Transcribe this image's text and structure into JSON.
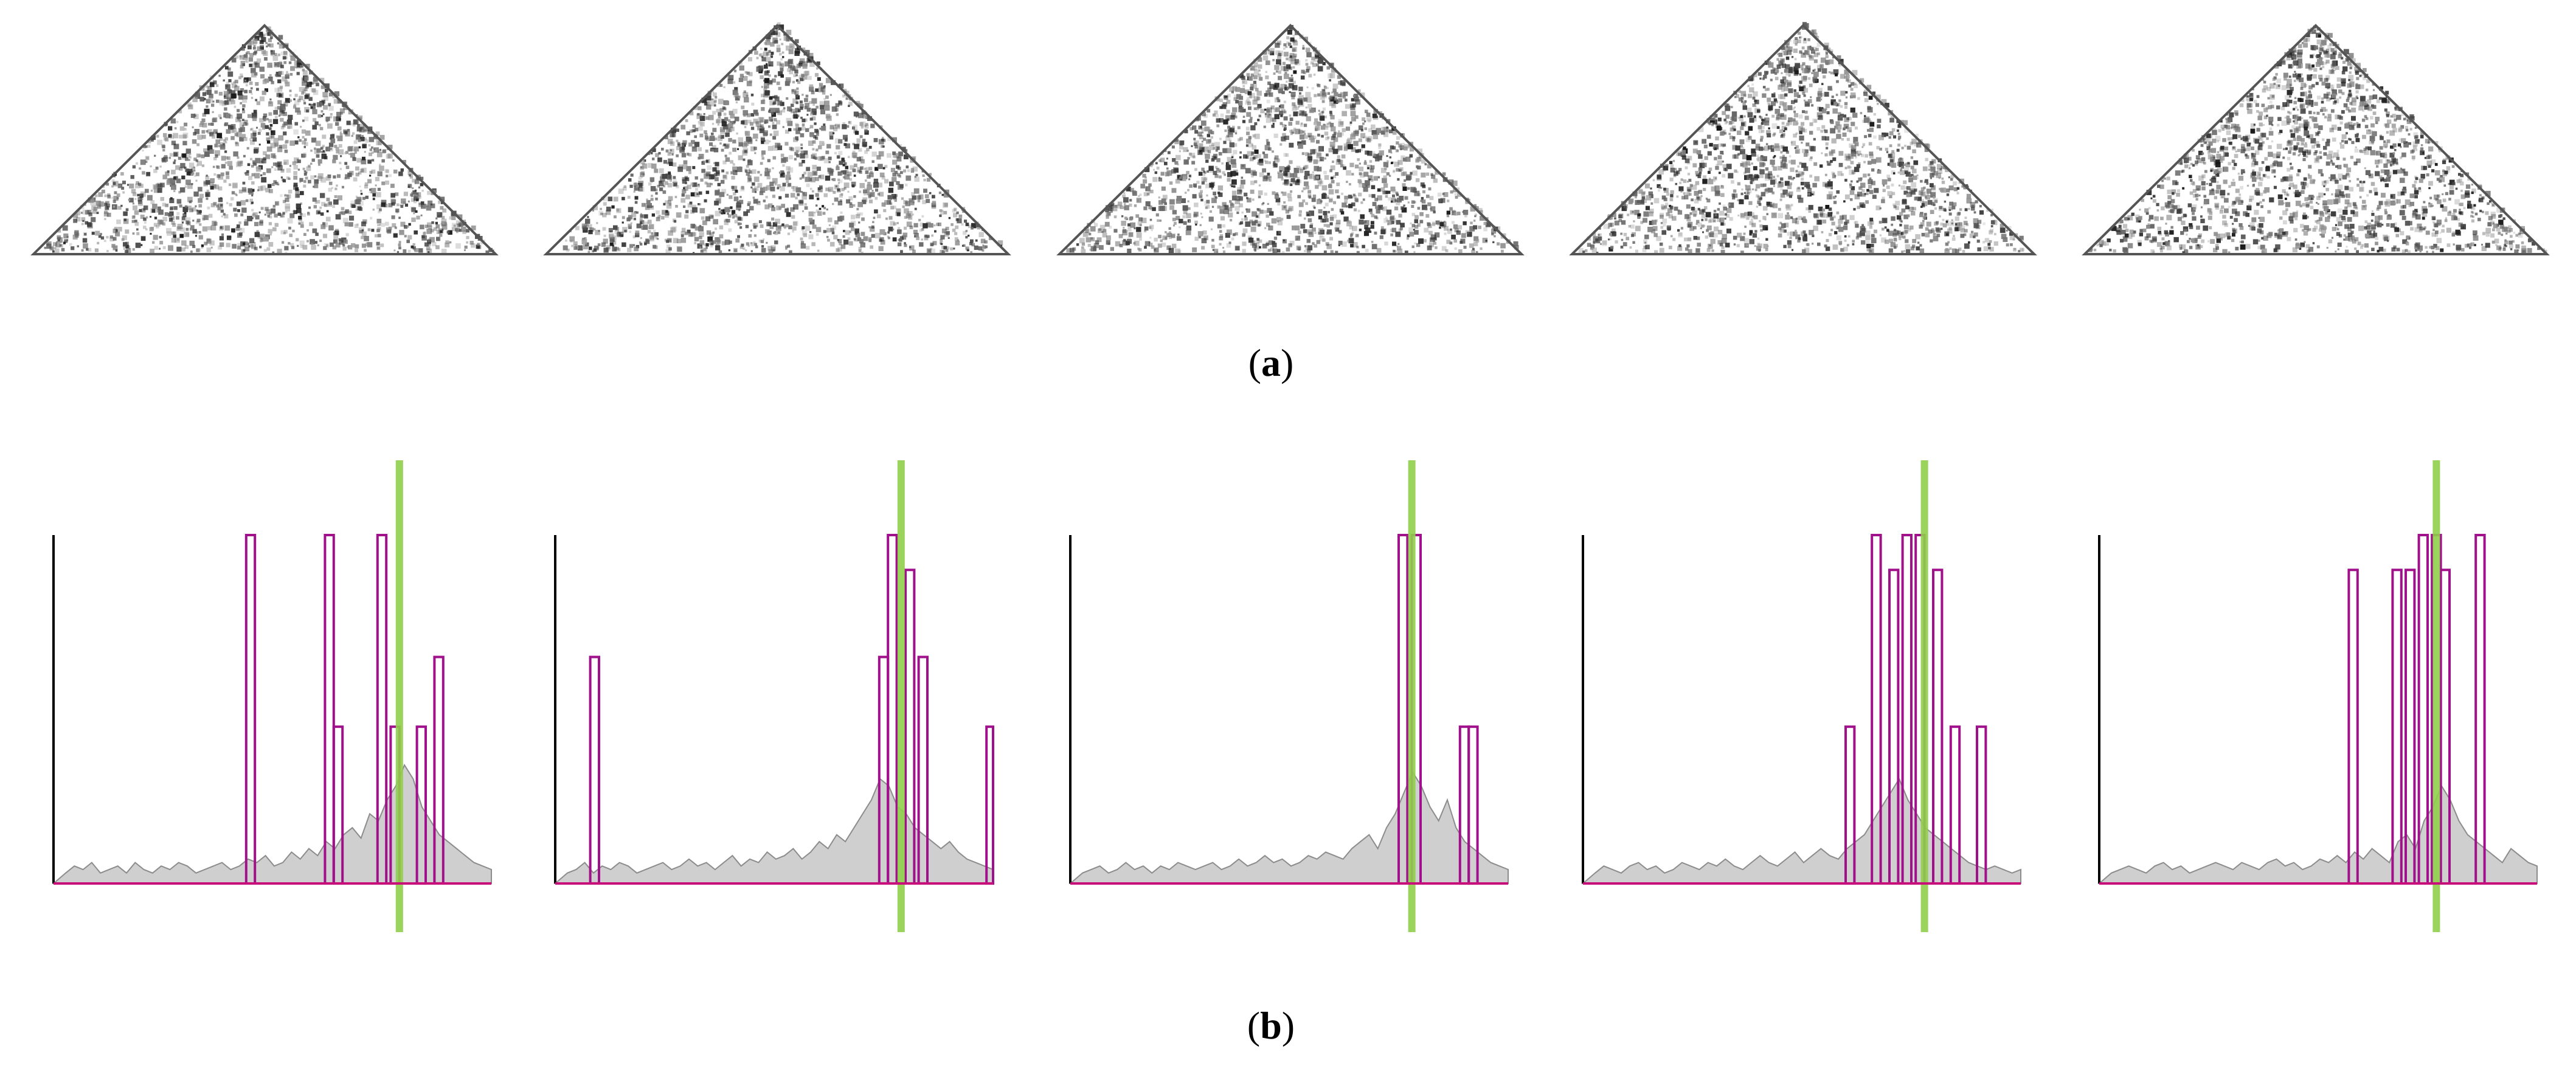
{
  "figure": {
    "panel_a": {
      "label": "a",
      "kind": "triangular-contact-maps",
      "count": 5
    },
    "panel_b": {
      "label": "b",
      "kind": "signal-profiles",
      "colors": {
        "axis": "#000000",
        "baseline": "#c8107a",
        "fill": "#cfcfcf",
        "fill_stroke": "#8c8c8c",
        "box_stroke": "#a0108a",
        "marker": "#8fcf4a"
      },
      "profiles": [
        {
          "gray": [
            0.03,
            0.05,
            0.04,
            0.06,
            0.03,
            0.04,
            0.05,
            0.03,
            0.06,
            0.04,
            0.03,
            0.05,
            0.04,
            0.06,
            0.05,
            0.03,
            0.04,
            0.05,
            0.06,
            0.04,
            0.05,
            0.07,
            0.06,
            0.08,
            0.05,
            0.06,
            0.09,
            0.07,
            0.1,
            0.08,
            0.12,
            0.1,
            0.14,
            0.16,
            0.13,
            0.2,
            0.18,
            0.24,
            0.28,
            0.34,
            0.3,
            0.22,
            0.18,
            0.14,
            0.12,
            0.1,
            0.08,
            0.06,
            0.05,
            0.04
          ],
          "boxes": [
            [
              0.44,
              0.46,
              1.0
            ],
            [
              0.62,
              0.64,
              1.0
            ],
            [
              0.64,
              0.66,
              0.45
            ],
            [
              0.74,
              0.76,
              1.0
            ],
            [
              0.77,
              0.79,
              0.45
            ],
            [
              0.83,
              0.85,
              0.45
            ],
            [
              0.87,
              0.89,
              0.65
            ]
          ],
          "marker": 0.79
        },
        {
          "gray": [
            0.03,
            0.04,
            0.06,
            0.03,
            0.05,
            0.04,
            0.06,
            0.05,
            0.03,
            0.04,
            0.05,
            0.06,
            0.04,
            0.05,
            0.07,
            0.05,
            0.06,
            0.04,
            0.06,
            0.08,
            0.05,
            0.07,
            0.06,
            0.09,
            0.07,
            0.08,
            0.1,
            0.07,
            0.09,
            0.12,
            0.1,
            0.14,
            0.12,
            0.16,
            0.2,
            0.24,
            0.3,
            0.28,
            0.22,
            0.2,
            0.16,
            0.14,
            0.12,
            0.1,
            0.12,
            0.09,
            0.07,
            0.06,
            0.05,
            0.04
          ],
          "boxes": [
            [
              0.08,
              0.1,
              0.65
            ],
            [
              0.74,
              0.76,
              0.65
            ],
            [
              0.76,
              0.78,
              1.0
            ],
            [
              0.8,
              0.82,
              0.9
            ],
            [
              0.83,
              0.85,
              0.65
            ],
            [
              0.985,
              1.0,
              0.45
            ]
          ],
          "marker": 0.79
        },
        {
          "gray": [
            0.03,
            0.04,
            0.05,
            0.03,
            0.04,
            0.06,
            0.04,
            0.05,
            0.03,
            0.05,
            0.04,
            0.06,
            0.05,
            0.04,
            0.05,
            0.06,
            0.04,
            0.05,
            0.07,
            0.05,
            0.06,
            0.08,
            0.06,
            0.07,
            0.05,
            0.06,
            0.08,
            0.07,
            0.09,
            0.08,
            0.07,
            0.1,
            0.12,
            0.14,
            0.1,
            0.16,
            0.2,
            0.26,
            0.32,
            0.28,
            0.22,
            0.18,
            0.24,
            0.16,
            0.12,
            0.1,
            0.08,
            0.06,
            0.05,
            0.04
          ],
          "boxes": [
            [
              0.75,
              0.77,
              1.0
            ],
            [
              0.78,
              0.8,
              1.0
            ],
            [
              0.89,
              0.91,
              0.45
            ],
            [
              0.91,
              0.93,
              0.45
            ]
          ],
          "marker": 0.78
        },
        {
          "gray": [
            0.03,
            0.05,
            0.04,
            0.03,
            0.05,
            0.06,
            0.04,
            0.05,
            0.03,
            0.04,
            0.06,
            0.05,
            0.04,
            0.06,
            0.05,
            0.07,
            0.05,
            0.04,
            0.06,
            0.08,
            0.06,
            0.05,
            0.07,
            0.09,
            0.06,
            0.08,
            0.1,
            0.08,
            0.07,
            0.1,
            0.12,
            0.14,
            0.18,
            0.22,
            0.26,
            0.3,
            0.24,
            0.2,
            0.16,
            0.14,
            0.12,
            0.1,
            0.08,
            0.06,
            0.05,
            0.04,
            0.05,
            0.04,
            0.03,
            0.04
          ],
          "boxes": [
            [
              0.6,
              0.62,
              0.45
            ],
            [
              0.66,
              0.68,
              1.0
            ],
            [
              0.7,
              0.72,
              0.9
            ],
            [
              0.73,
              0.75,
              1.0
            ],
            [
              0.76,
              0.78,
              1.0
            ],
            [
              0.8,
              0.82,
              0.9
            ],
            [
              0.84,
              0.86,
              0.45
            ],
            [
              0.9,
              0.92,
              0.45
            ]
          ],
          "marker": 0.78
        },
        {
          "gray": [
            0.03,
            0.04,
            0.05,
            0.04,
            0.03,
            0.05,
            0.06,
            0.04,
            0.05,
            0.03,
            0.04,
            0.05,
            0.06,
            0.05,
            0.04,
            0.06,
            0.05,
            0.04,
            0.06,
            0.07,
            0.05,
            0.06,
            0.04,
            0.05,
            0.07,
            0.06,
            0.08,
            0.06,
            0.09,
            0.07,
            0.1,
            0.08,
            0.06,
            0.12,
            0.14,
            0.1,
            0.18,
            0.22,
            0.28,
            0.24,
            0.18,
            0.14,
            0.12,
            0.1,
            0.08,
            0.06,
            0.1,
            0.08,
            0.06,
            0.05
          ],
          "boxes": [
            [
              0.57,
              0.59,
              0.9
            ],
            [
              0.67,
              0.69,
              0.9
            ],
            [
              0.7,
              0.72,
              0.9
            ],
            [
              0.73,
              0.75,
              1.0
            ],
            [
              0.76,
              0.78,
              1.0
            ],
            [
              0.78,
              0.8,
              0.9
            ],
            [
              0.86,
              0.88,
              1.0
            ]
          ],
          "marker": 0.77
        }
      ]
    }
  }
}
